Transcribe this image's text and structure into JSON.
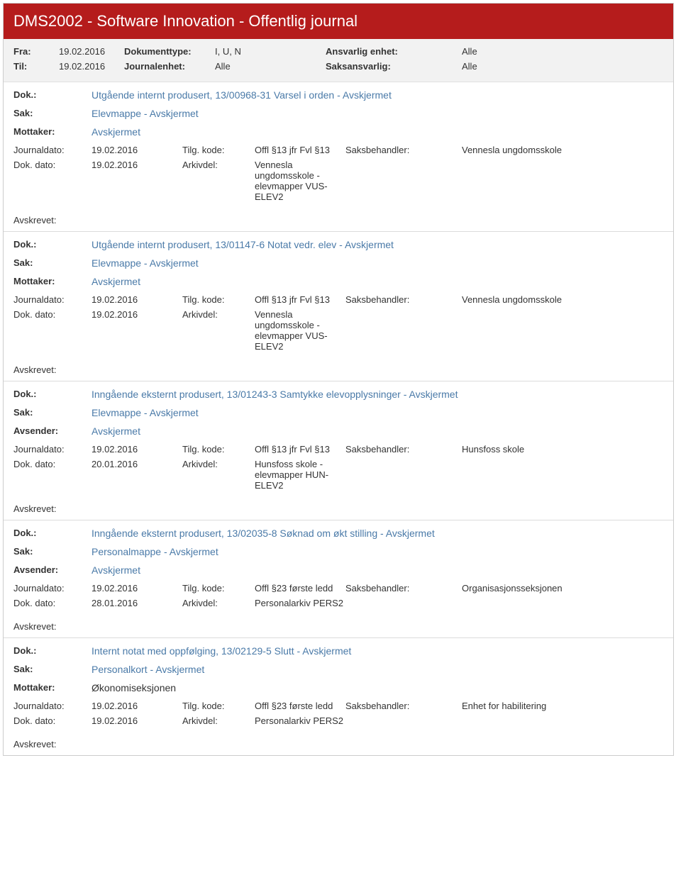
{
  "header": {
    "title": "DMS2002 - Software Innovation - Offentlig journal"
  },
  "filters": {
    "fra_label": "Fra:",
    "fra_value": "19.02.2016",
    "til_label": "Til:",
    "til_value": "19.02.2016",
    "doktype_label": "Dokumenttype:",
    "doktype_value": "I, U, N",
    "journalenhet_label": "Journalenhet:",
    "journalenhet_value": "Alle",
    "ansvarlig_label": "Ansvarlig enhet:",
    "ansvarlig_value": "Alle",
    "saksansvarlig_label": "Saksansvarlig:",
    "saksansvarlig_value": "Alle"
  },
  "labels": {
    "dok": "Dok.:",
    "sak": "Sak:",
    "mottaker": "Mottaker:",
    "avsender": "Avsender:",
    "journaldato": "Journaldato:",
    "tilgkode": "Tilg. kode:",
    "saksbehandler": "Saksbehandler:",
    "dokdato": "Dok. dato:",
    "arkivdel": "Arkivdel:",
    "avskrevet": "Avskrevet:"
  },
  "entries": [
    {
      "dok": "Utgående internt produsert, 13/00968-31 Varsel i orden - Avskjermet",
      "sak": "Elevmappe - Avskjermet",
      "party_label": "Mottaker:",
      "party_value": "Avskjermet",
      "journaldato": "19.02.2016",
      "tilgkode": "Offl §13 jfr Fvl §13",
      "saksbehandler": "Vennesla ungdomsskole",
      "dokdato": "19.02.2016",
      "arkivdel": "Vennesla ungdomsskole - elevmapper VUS-ELEV2"
    },
    {
      "dok": "Utgående internt produsert, 13/01147-6 Notat vedr. elev - Avskjermet",
      "sak": "Elevmappe - Avskjermet",
      "party_label": "Mottaker:",
      "party_value": "Avskjermet",
      "journaldato": "19.02.2016",
      "tilgkode": "Offl §13 jfr Fvl §13",
      "saksbehandler": "Vennesla ungdomsskole",
      "dokdato": "19.02.2016",
      "arkivdel": "Vennesla ungdomsskole - elevmapper VUS-ELEV2"
    },
    {
      "dok": "Inngående eksternt produsert, 13/01243-3 Samtykke elevopplysninger - Avskjermet",
      "sak": "Elevmappe - Avskjermet",
      "party_label": "Avsender:",
      "party_value": "Avskjermet",
      "journaldato": "19.02.2016",
      "tilgkode": "Offl §13 jfr Fvl §13",
      "saksbehandler": "Hunsfoss skole",
      "dokdato": "20.01.2016",
      "arkivdel": "Hunsfoss skole - elevmapper HUN-ELEV2"
    },
    {
      "dok": "Inngående eksternt produsert, 13/02035-8 Søknad om økt stilling - Avskjermet",
      "sak": "Personalmappe - Avskjermet",
      "party_label": "Avsender:",
      "party_value": "Avskjermet",
      "journaldato": "19.02.2016",
      "tilgkode": "Offl §23 første ledd",
      "saksbehandler": "Organisasjonsseksjonen",
      "dokdato": "28.01.2016",
      "arkivdel": "Personalarkiv PERS2"
    },
    {
      "dok": "Internt notat med oppfølging, 13/02129-5 Slutt - Avskjermet",
      "sak": "Personalkort - Avskjermet",
      "party_label": "Mottaker:",
      "party_value": "Økonomiseksjonen",
      "party_plain": true,
      "journaldato": "19.02.2016",
      "tilgkode": "Offl §23 første ledd",
      "saksbehandler": "Enhet for habilitering",
      "dokdato": "19.02.2016",
      "arkivdel": "Personalarkiv PERS2"
    }
  ]
}
